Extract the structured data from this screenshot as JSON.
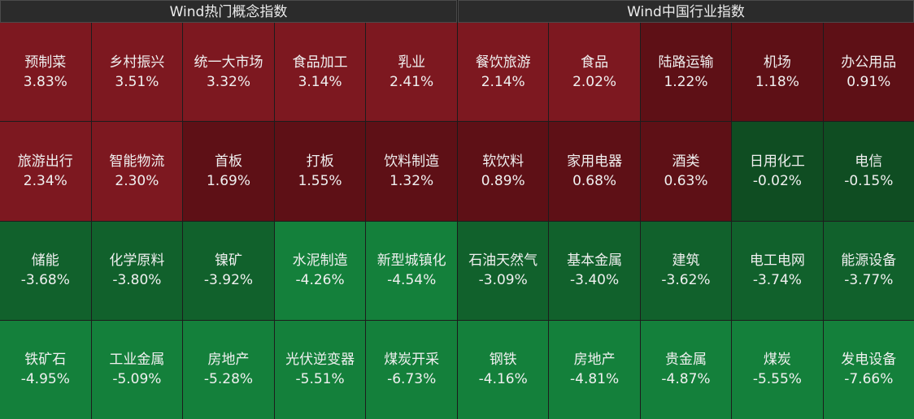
{
  "left": {
    "title": "Wind热门概念指数",
    "cells": [
      {
        "name": "预制菜",
        "pct": "3.83%",
        "tone": "r1"
      },
      {
        "name": "乡村振兴",
        "pct": "3.51%",
        "tone": "r1"
      },
      {
        "name": "统一大市场",
        "pct": "3.32%",
        "tone": "r1"
      },
      {
        "name": "食品加工",
        "pct": "3.14%",
        "tone": "r1"
      },
      {
        "name": "乳业",
        "pct": "2.41%",
        "tone": "r1"
      },
      {
        "name": "旅游出行",
        "pct": "2.34%",
        "tone": "r1"
      },
      {
        "name": "智能物流",
        "pct": "2.30%",
        "tone": "r1"
      },
      {
        "name": "首板",
        "pct": "1.69%",
        "tone": "r2"
      },
      {
        "name": "打板",
        "pct": "1.55%",
        "tone": "r2"
      },
      {
        "name": "饮料制造",
        "pct": "1.32%",
        "tone": "r2"
      },
      {
        "name": "储能",
        "pct": "-3.68%",
        "tone": "g2"
      },
      {
        "name": "化学原料",
        "pct": "-3.80%",
        "tone": "g2"
      },
      {
        "name": "镍矿",
        "pct": "-3.92%",
        "tone": "g2"
      },
      {
        "name": "水泥制造",
        "pct": "-4.26%",
        "tone": "g3"
      },
      {
        "name": "新型城镇化",
        "pct": "-4.54%",
        "tone": "g3"
      },
      {
        "name": "铁矿石",
        "pct": "-4.95%",
        "tone": "g3"
      },
      {
        "name": "工业金属",
        "pct": "-5.09%",
        "tone": "g3"
      },
      {
        "name": "房地产",
        "pct": "-5.28%",
        "tone": "g3"
      },
      {
        "name": "光伏逆变器",
        "pct": "-5.51%",
        "tone": "g3"
      },
      {
        "name": "煤炭开采",
        "pct": "-6.73%",
        "tone": "g3"
      }
    ]
  },
  "right": {
    "title": "Wind中国行业指数",
    "cells": [
      {
        "name": "餐饮旅游",
        "pct": "2.14%",
        "tone": "r1"
      },
      {
        "name": "食品",
        "pct": "2.02%",
        "tone": "r1"
      },
      {
        "name": "陆路运输",
        "pct": "1.22%",
        "tone": "r2"
      },
      {
        "name": "机场",
        "pct": "1.18%",
        "tone": "r2"
      },
      {
        "name": "办公用品",
        "pct": "0.91%",
        "tone": "r2"
      },
      {
        "name": "软饮料",
        "pct": "0.89%",
        "tone": "r2"
      },
      {
        "name": "家用电器",
        "pct": "0.68%",
        "tone": "r2"
      },
      {
        "name": "酒类",
        "pct": "0.63%",
        "tone": "r2"
      },
      {
        "name": "日用化工",
        "pct": "-0.02%",
        "tone": "g1"
      },
      {
        "name": "电信",
        "pct": "-0.15%",
        "tone": "g1"
      },
      {
        "name": "石油天然气",
        "pct": "-3.09%",
        "tone": "g2"
      },
      {
        "name": "基本金属",
        "pct": "-3.40%",
        "tone": "g2"
      },
      {
        "name": "建筑",
        "pct": "-3.62%",
        "tone": "g2"
      },
      {
        "name": "电工电网",
        "pct": "-3.74%",
        "tone": "g2"
      },
      {
        "name": "能源设备",
        "pct": "-3.77%",
        "tone": "g2"
      },
      {
        "name": "钢铁",
        "pct": "-4.16%",
        "tone": "g3"
      },
      {
        "name": "房地产",
        "pct": "-4.81%",
        "tone": "g3"
      },
      {
        "name": "贵金属",
        "pct": "-4.87%",
        "tone": "g3"
      },
      {
        "name": "煤炭",
        "pct": "-5.55%",
        "tone": "g3"
      },
      {
        "name": "发电设备",
        "pct": "-7.66%",
        "tone": "g3"
      }
    ]
  }
}
